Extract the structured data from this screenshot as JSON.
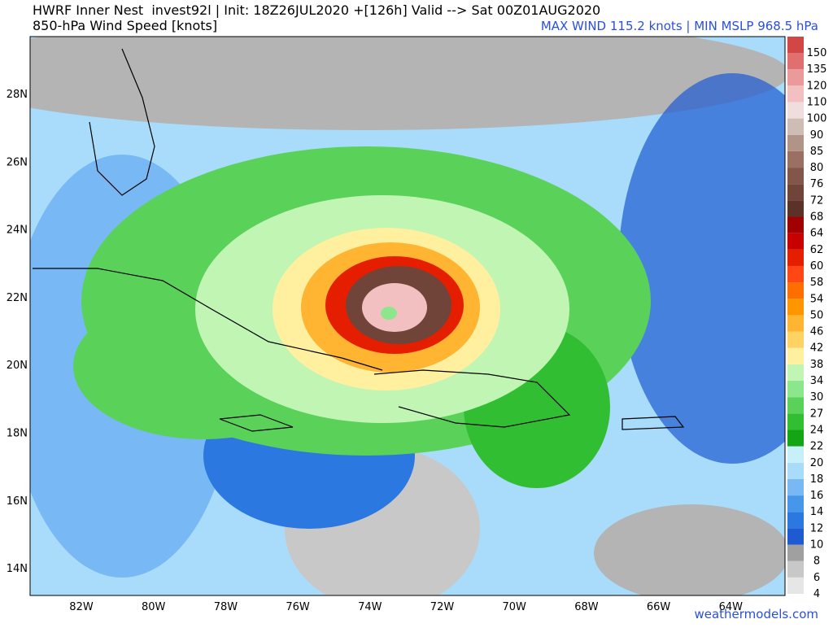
{
  "header": {
    "title": "HWRF Inner Nest  invest92l | Init: 18Z26JUL2020 +[126h] Valid --> Sat 00Z01AUG2020",
    "subtitle": "850-hPa Wind Speed [knots]",
    "stats": "MAX WIND 115.2 knots | MIN MSLP 968.5 hPa"
  },
  "map": {
    "lat_labels": [
      "28N",
      "26N",
      "24N",
      "22N",
      "20N",
      "18N",
      "16N",
      "14N"
    ],
    "lon_labels": [
      "82W",
      "80W",
      "78W",
      "76W",
      "74W",
      "72W",
      "70W",
      "68W",
      "66W",
      "64W"
    ]
  },
  "colorbar": {
    "levels": [
      4,
      6,
      8,
      10,
      12,
      14,
      16,
      18,
      20,
      22,
      24,
      27,
      30,
      34,
      38,
      42,
      46,
      50,
      54,
      58,
      60,
      62,
      64,
      68,
      72,
      76,
      80,
      85,
      90,
      100,
      110,
      120,
      135,
      150
    ],
    "colors": [
      "#e6e6e6",
      "#c8c8c8",
      "#a0a0a0",
      "#1e5ad2",
      "#2a78e0",
      "#4696ea",
      "#78b9f5",
      "#a8dcfa",
      "#c8f0fa",
      "#14a514",
      "#32be32",
      "#5ad25a",
      "#8ce68c",
      "#c0f5b4",
      "#fff0a0",
      "#ffd264",
      "#ffb432",
      "#ff9600",
      "#ff6e00",
      "#ff4614",
      "#e61e00",
      "#c80000",
      "#a00000",
      "#5a3228",
      "#704438",
      "#82564a",
      "#9a7064",
      "#b09488",
      "#cdbdb5",
      "#f0dede",
      "#f2c0c0",
      "#ea9a9a",
      "#e07070",
      "#d24646"
    ]
  },
  "watermark": "weathermodels.com"
}
